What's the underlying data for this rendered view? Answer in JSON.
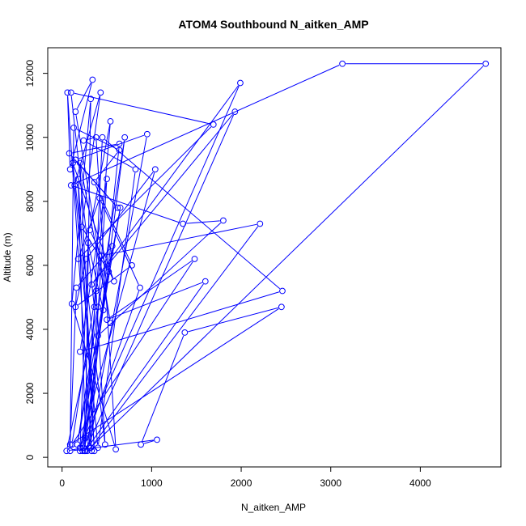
{
  "chart_data": {
    "type": "line",
    "title": "ATOM4 Southbound N_aitken_AMP",
    "xlabel": "N_aitken_AMP",
    "ylabel": "Altitude (m)",
    "xlim": [
      -160,
      4900
    ],
    "ylim": [
      -300,
      12800
    ],
    "xticks": [
      0,
      1000,
      2000,
      3000,
      4000
    ],
    "yticks": [
      0,
      2000,
      4000,
      6000,
      8000,
      10000,
      12000
    ],
    "grid": false,
    "legend": "none",
    "line_color": "#0000ff",
    "marker": "open-circle",
    "series": [
      {
        "x": [
          330,
          60,
          90,
          340,
          150,
          540,
          200,
          360,
          180,
          260,
          320,
          110,
          600,
          380,
          240,
          820,
          400,
          140,
          430,
          220,
          520,
          200,
          290,
          460,
          650,
          170,
          700,
          250,
          380,
          480,
          120,
          580,
          310,
          540,
          230,
          870,
          420,
          180,
          1690,
          100,
          360,
          450,
          2460,
          200,
          500,
          300,
          950,
          150,
          620,
          80,
          640,
          280,
          4730,
          3130,
          100,
          1350,
          1800,
          400,
          320,
          2210,
          440,
          110,
          1480,
          500,
          1600,
          260,
          1930,
          330,
          1990,
          200,
          1040,
          270,
          150,
          780,
          360,
          640,
          130,
          90,
          1060,
          880,
          1370,
          2450,
          90,
          160,
          560,
          240,
          50,
          400
        ],
        "y": [
          200,
          11400,
          9000,
          11800,
          10800,
          4200,
          9200,
          200,
          8700,
          600,
          11200,
          4800,
          250,
          10000,
          9900,
          9000,
          300,
          8500,
          11400,
          7200,
          5800,
          200,
          6700,
          4600,
          7800,
          400,
          10000,
          200,
          5200,
          400,
          9200,
          5500,
          7100,
          10500,
          200,
          5300,
          8100,
          6200,
          10400,
          11400,
          4700,
          10000,
          5200,
          3300,
          8700,
          300,
          10100,
          9300,
          7800,
          9500,
          9800,
          200,
          12300,
          12300,
          8500,
          7300,
          7400,
          3800,
          300,
          7300,
          6300,
          400,
          6200,
          4300,
          5500,
          200,
          10800,
          5400,
          11700,
          300,
          9000,
          6200,
          4700,
          6000,
          8600,
          9600,
          10300,
          200,
          550,
          400,
          3900,
          4700,
          400,
          5300,
          6600,
          300,
          200,
          4700
        ]
      }
    ]
  }
}
